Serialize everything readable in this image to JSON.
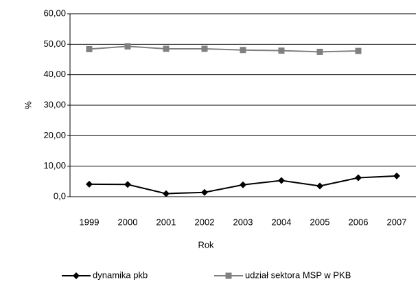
{
  "chart_data": {
    "type": "line",
    "xlabel": "Rok",
    "ylabel": "%",
    "categories": [
      "1999",
      "2000",
      "2001",
      "2002",
      "2003",
      "2004",
      "2005",
      "2006",
      "2007"
    ],
    "series": [
      {
        "name": "dynamika pkb",
        "color": "#000000",
        "marker": "diamond",
        "values": [
          4.1,
          4.0,
          1.0,
          1.4,
          3.9,
          5.3,
          3.5,
          6.2,
          6.8
        ]
      },
      {
        "name": "udział sektora MSP w PKB",
        "color": "#808080",
        "marker": "square",
        "values": [
          48.4,
          49.3,
          48.5,
          48.5,
          48.1,
          47.9,
          47.5,
          47.8,
          null
        ]
      }
    ],
    "ylim": [
      0,
      60
    ],
    "yticks": [
      {
        "value": 0,
        "label": "0,0"
      },
      {
        "value": 10,
        "label": "10,00"
      },
      {
        "value": 20,
        "label": "20,00"
      },
      {
        "value": 30,
        "label": "30,00"
      },
      {
        "value": 40,
        "label": "40,00"
      },
      {
        "value": 50,
        "label": "50,00"
      },
      {
        "value": 60,
        "label": "60,00"
      }
    ],
    "grid": true,
    "legend": "bottom"
  }
}
